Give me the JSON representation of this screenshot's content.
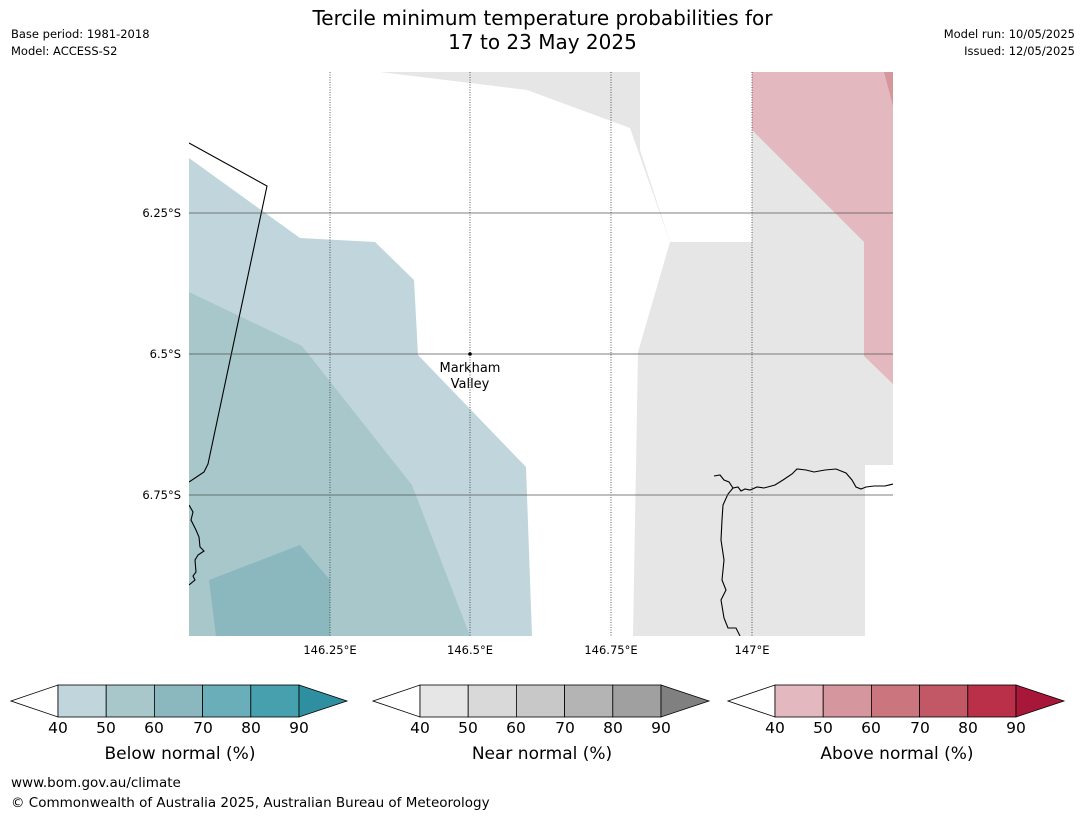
{
  "header": {
    "title_line1": "Tercile minimum temperature probabilities for",
    "title_line2": "17 to 23 May 2025",
    "base_period": "Base period: 1981-2018",
    "model": "Model: ACCESS-S2",
    "model_run": "Model run: 10/05/2025",
    "issued": "Issued: 12/05/2025"
  },
  "map": {
    "lon_ticks": [
      "146.25°E",
      "146.5°E",
      "146.75°E",
      "147°E"
    ],
    "lat_ticks": [
      "6.25°S",
      "6.5°S",
      "6.75°S"
    ],
    "place": {
      "name_line1": "Markham",
      "name_line2": "Valley",
      "lon": 146.5,
      "lat": -6.5
    },
    "categories": [
      {
        "name": "Below normal",
        "color_40_50": "#c0d6dc",
        "color_50_60": "#a8c7cb",
        "color_60_70": "#8bb8be"
      },
      {
        "name": "Near normal",
        "color_40_50": "#e6e6e6"
      },
      {
        "name": "Above normal",
        "color_40_50": "#e3b9bf",
        "color_50_60": "#d6969d"
      }
    ]
  },
  "legends": [
    {
      "label": "Below normal (%)",
      "ticks": [
        "40",
        "50",
        "60",
        "70",
        "80",
        "90"
      ],
      "colors": [
        "#c0d6dc",
        "#a8c7cb",
        "#8bb8be",
        "#6aaeb9",
        "#47a0ae",
        "#2e8fa1"
      ]
    },
    {
      "label": "Near normal (%)",
      "ticks": [
        "40",
        "50",
        "60",
        "70",
        "80",
        "90"
      ],
      "colors": [
        "#e6e6e6",
        "#d9d9d9",
        "#c8c8c8",
        "#b4b4b4",
        "#a0a0a0",
        "#808080"
      ]
    },
    {
      "label": "Above normal (%)",
      "ticks": [
        "40",
        "50",
        "60",
        "70",
        "80",
        "90"
      ],
      "colors": [
        "#e3b9bf",
        "#d6969d",
        "#cb767e",
        "#c25866",
        "#bb3049",
        "#a8173a"
      ]
    }
  ],
  "footer": {
    "url": "www.bom.gov.au/climate",
    "copyright": "© Commonwealth of Australia 2025, Australian Bureau of Meteorology"
  }
}
